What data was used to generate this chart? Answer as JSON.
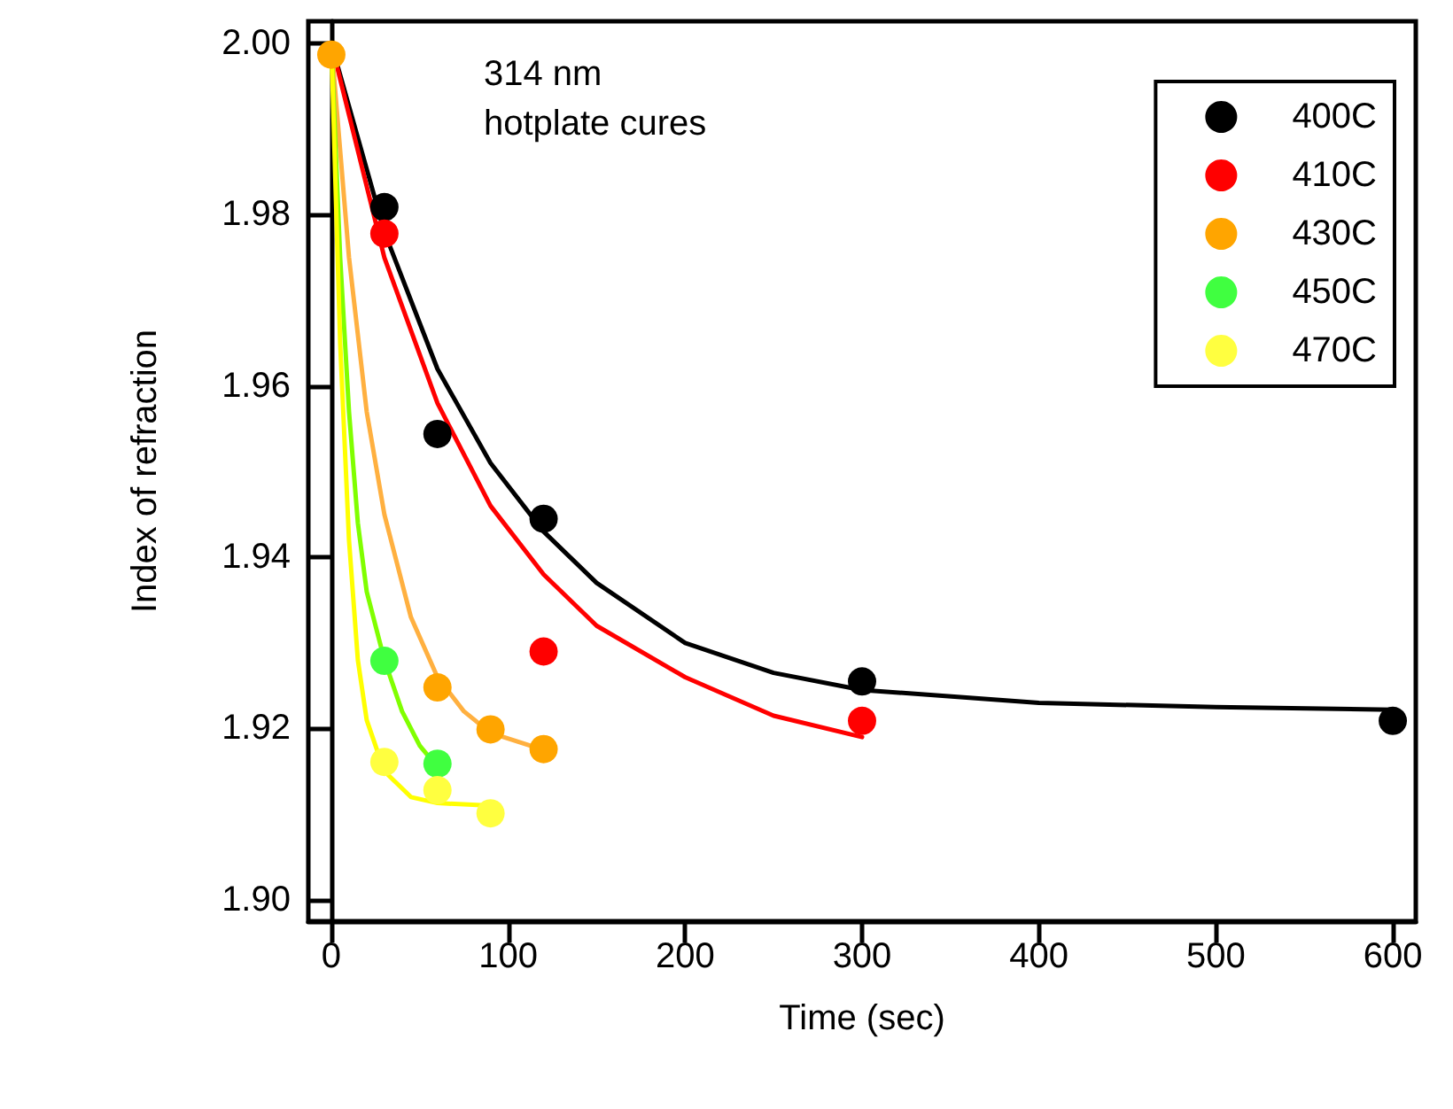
{
  "chart_data": {
    "type": "scatter",
    "xlabel": "Time (sec)",
    "ylabel": "Index of refraction",
    "annotations": [
      "314 nm",
      "hotplate cures"
    ],
    "xlim": [
      -13,
      613
    ],
    "xticks": [
      0,
      100,
      200,
      300,
      400,
      500,
      600
    ],
    "ylim": [
      1.8975,
      2.0026
    ],
    "yticks": [
      {
        "value": 1.9,
        "label": "1.90"
      },
      {
        "value": 1.92,
        "label": "1.92"
      },
      {
        "value": 1.94,
        "label": "1.94"
      },
      {
        "value": 1.96,
        "label": "1.96"
      },
      {
        "value": 1.98,
        "label": "1.98"
      },
      {
        "value": 2.0,
        "label": "2.00"
      }
    ],
    "legend": "top right",
    "marker": "circle",
    "series": [
      {
        "type": "line",
        "marker": "none",
        "color": "#000000",
        "x": [
          0,
          30,
          60,
          90,
          120,
          150,
          200,
          250,
          300,
          400,
          500,
          600
        ],
        "values": [
          2.0,
          1.978,
          1.962,
          1.951,
          1.943,
          1.937,
          1.93,
          1.9265,
          1.9245,
          1.923,
          1.9225,
          1.9222
        ]
      },
      {
        "type": "line",
        "marker": "none",
        "color": "#ff0000",
        "x": [
          0,
          30,
          60,
          90,
          120,
          150,
          200,
          250,
          300
        ],
        "values": [
          2.0,
          1.975,
          1.958,
          1.946,
          1.938,
          1.932,
          1.926,
          1.9215,
          1.919
        ]
      },
      {
        "type": "line",
        "marker": "none",
        "color": "#ffb040",
        "x": [
          0,
          10,
          20,
          30,
          45,
          60,
          75,
          90,
          120
        ],
        "values": [
          2.0,
          1.975,
          1.957,
          1.945,
          1.933,
          1.926,
          1.922,
          1.9195,
          1.9175
        ]
      },
      {
        "type": "line",
        "marker": "none",
        "color": "#80ff00",
        "x": [
          0,
          5,
          10,
          15,
          20,
          30,
          40,
          50,
          60
        ],
        "values": [
          2.0,
          1.975,
          1.957,
          1.944,
          1.936,
          1.928,
          1.922,
          1.918,
          1.9155
        ]
      },
      {
        "type": "line",
        "marker": "none",
        "color": "#ffff00",
        "x": [
          0,
          5,
          10,
          15,
          20,
          30,
          45,
          60,
          90
        ],
        "values": [
          2.0,
          1.965,
          1.942,
          1.928,
          1.921,
          1.915,
          1.912,
          1.9113,
          1.911
        ]
      },
      {
        "name": "400C",
        "color": "#000000",
        "x": [
          30,
          60,
          120,
          300,
          600
        ],
        "values": [
          1.9809,
          1.9544,
          1.9445,
          1.9255,
          1.9209
        ]
      },
      {
        "name": "410C",
        "color": "#ff0000",
        "x": [
          30,
          120,
          300
        ],
        "values": [
          1.9778,
          1.929,
          1.9209
        ]
      },
      {
        "name": "430C",
        "color": "#ffa500",
        "x": [
          0,
          60,
          90,
          120
        ],
        "values": [
          1.9987,
          1.9248,
          1.9199,
          1.9176
        ]
      },
      {
        "name": "450C",
        "color": "#40ff40",
        "x": [
          30,
          60
        ],
        "values": [
          1.9279,
          1.9159
        ]
      },
      {
        "name": "470C",
        "color": "#ffff40",
        "x": [
          30,
          60,
          90
        ],
        "values": [
          1.9161,
          1.9128,
          1.9101
        ]
      }
    ]
  }
}
